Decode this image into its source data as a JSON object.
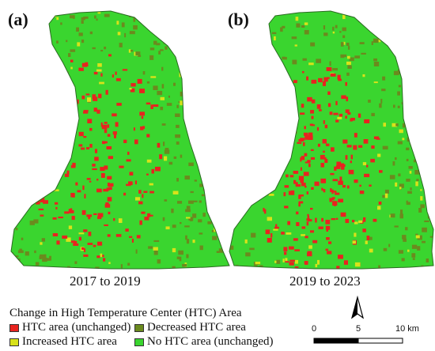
{
  "panels": [
    {
      "letter": "(a)",
      "caption": "2017 to 2019"
    },
    {
      "letter": "(b)",
      "caption": "2019 to 2023"
    }
  ],
  "legend": {
    "title": "Change in High Temperature Center (HTC) Area",
    "items": [
      {
        "label": "HTC area (unchanged)",
        "color": "#e8231f"
      },
      {
        "label": "Decreased HTC area",
        "color": "#6b8a1e"
      },
      {
        "label": "Increased HTC area",
        "color": "#d8e21a"
      },
      {
        "label": "No HTC area (unchanged)",
        "color": "#3ad52f"
      }
    ]
  },
  "scale_bar": {
    "labels": [
      "0",
      "5",
      "10 km"
    ]
  },
  "colors": {
    "base_green": "#3ad52f",
    "htc_red": "#e8231f",
    "decrease_olive": "#6b8a1e",
    "increase_yellow": "#d8e21a"
  }
}
